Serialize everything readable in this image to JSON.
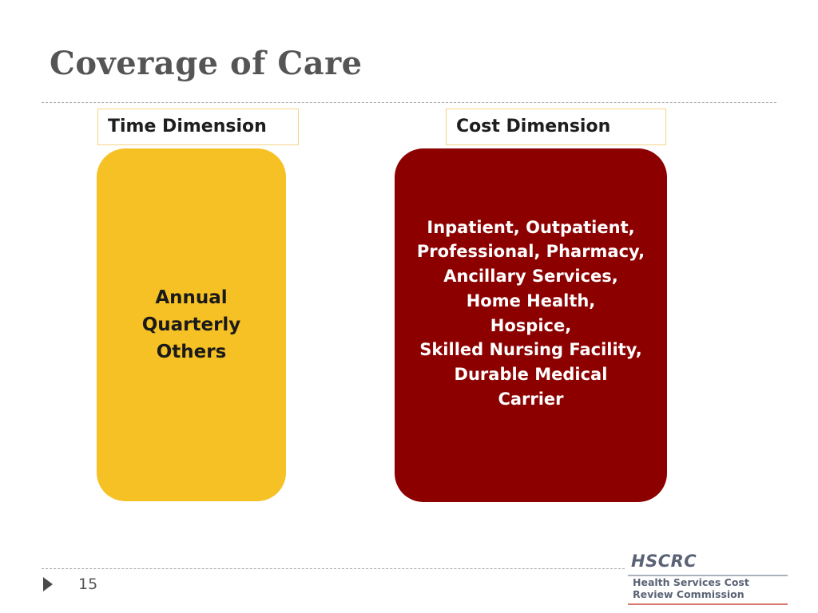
{
  "slide": {
    "title": "Coverage of Care",
    "page_number": "15"
  },
  "time_dimension": {
    "label": "Time Dimension",
    "items": [
      "Annual",
      "Quarterly",
      "Others"
    ]
  },
  "cost_dimension": {
    "label": "Cost Dimension",
    "items": [
      "Inpatient, Outpatient,",
      "Professional, Pharmacy,",
      "Ancillary Services,",
      "Home Health,",
      "Hospice,",
      "Skilled Nursing Facility,",
      "Durable Medical",
      "Carrier"
    ]
  },
  "logo": {
    "abbreviation": "HSCRC",
    "name_line_1": "Health Services Cost",
    "name_line_2": "Review Commission"
  },
  "colors": {
    "title": "#555555",
    "time_panel": "#f6c124",
    "cost_panel": "#8d0000",
    "label_border": "#f5d487",
    "logo_text": "#5a6275"
  },
  "icons": {
    "page_marker": "triangle-right-icon"
  }
}
